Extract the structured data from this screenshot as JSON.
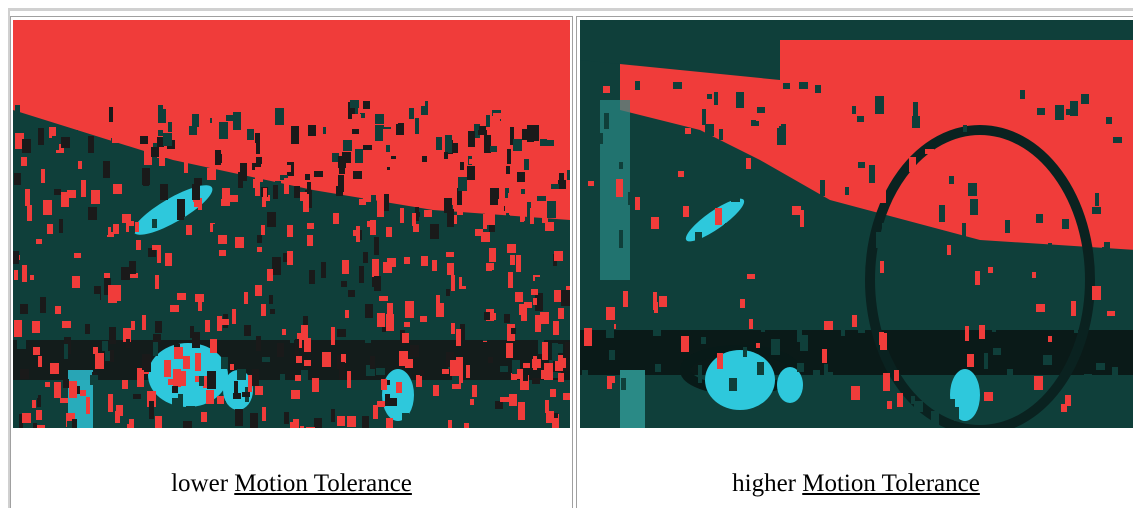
{
  "cells": [
    {
      "prefix": "lower",
      "link": "Motion Tolerance"
    },
    {
      "prefix": "higher",
      "link": "Motion Tolerance"
    }
  ]
}
